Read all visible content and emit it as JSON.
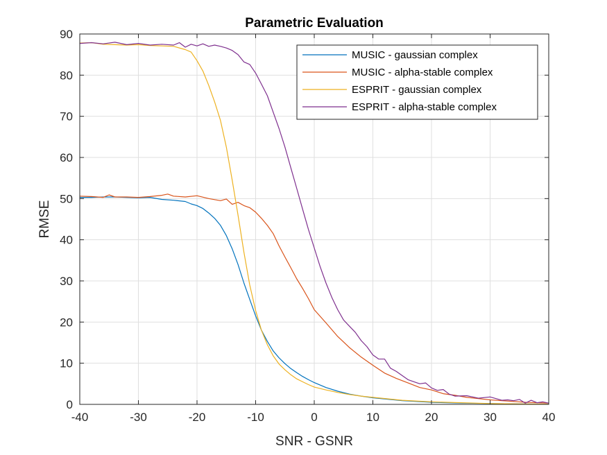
{
  "chart_data": {
    "type": "line",
    "title": "Parametric Evaluation",
    "xlabel": "SNR - GSNR",
    "ylabel": "RMSE",
    "xlim": [
      -40,
      40
    ],
    "ylim": [
      0,
      90
    ],
    "xticks": [
      -40,
      -30,
      -20,
      -10,
      0,
      10,
      20,
      30,
      40
    ],
    "yticks": [
      0,
      10,
      20,
      30,
      40,
      50,
      60,
      70,
      80,
      90
    ],
    "grid": true,
    "legend_position": "top-right",
    "series": [
      {
        "name": "MUSIC - gaussian complex",
        "color": "#0072BD",
        "x": [
          -40,
          -38,
          -36,
          -34,
          -32,
          -30,
          -28,
          -26,
          -24,
          -22,
          -21,
          -20,
          -19,
          -18,
          -17,
          -16,
          -15,
          -14,
          -13,
          -12,
          -11,
          -10,
          -9,
          -8,
          -7,
          -6,
          -5,
          -4,
          -3,
          -2,
          -1,
          0,
          2,
          4,
          6,
          8,
          10,
          15,
          20,
          25,
          30,
          35,
          40
        ],
        "y": [
          50.3,
          50.3,
          50.4,
          50.4,
          50.3,
          50.2,
          50.3,
          49.8,
          49.6,
          49.3,
          48.7,
          48.3,
          47.6,
          46.5,
          45.2,
          43.5,
          41.0,
          37.8,
          34.0,
          29.5,
          25.5,
          21.5,
          18.0,
          15.3,
          13.0,
          11.3,
          9.9,
          8.7,
          7.7,
          6.8,
          6.0,
          5.3,
          4.1,
          3.2,
          2.5,
          2.0,
          1.6,
          0.9,
          0.5,
          0.3,
          0.2,
          0.1,
          0.05
        ]
      },
      {
        "name": "MUSIC - alpha-stable complex",
        "color": "#D95319",
        "x": [
          -40,
          -38,
          -36,
          -35,
          -34,
          -32,
          -30,
          -28,
          -26,
          -25,
          -24,
          -22,
          -20,
          -18,
          -16,
          -15,
          -14,
          -13,
          -12,
          -11,
          -10,
          -9,
          -8,
          -7,
          -6,
          -5,
          -4,
          -3,
          -2,
          -1,
          0,
          2,
          4,
          6,
          8,
          10,
          12,
          14,
          16,
          18,
          20,
          22,
          24,
          26,
          28,
          30,
          32,
          34,
          36,
          38,
          40
        ],
        "y": [
          50.6,
          50.5,
          50.3,
          50.9,
          50.4,
          50.4,
          50.3,
          50.5,
          50.8,
          51.1,
          50.6,
          50.4,
          50.7,
          50.0,
          49.5,
          49.9,
          48.6,
          49.1,
          48.3,
          47.8,
          46.7,
          45.2,
          43.5,
          41.5,
          38.5,
          35.8,
          33.2,
          30.5,
          28.2,
          25.7,
          23.0,
          19.8,
          16.5,
          13.8,
          11.5,
          9.5,
          7.6,
          6.3,
          5.2,
          4.1,
          3.5,
          2.6,
          2.2,
          1.7,
          1.4,
          1.1,
          0.9,
          0.7,
          0.5,
          0.4,
          0.3
        ]
      },
      {
        "name": "ESPRIT - gaussian complex",
        "color": "#EDB120",
        "x": [
          -40,
          -38,
          -36,
          -34,
          -32,
          -30,
          -28,
          -26,
          -24,
          -22,
          -21,
          -20,
          -19,
          -18,
          -17,
          -16,
          -15,
          -14,
          -13,
          -12,
          -11,
          -10,
          -9,
          -8,
          -7,
          -6,
          -5,
          -4,
          -3,
          -2,
          -1,
          0,
          2,
          4,
          6,
          8,
          10,
          15,
          20,
          25,
          30,
          35,
          40
        ],
        "y": [
          87.8,
          87.9,
          87.5,
          87.4,
          87.3,
          87.4,
          87.2,
          87.1,
          87.0,
          86.2,
          85.6,
          83.5,
          81.0,
          77.5,
          73.5,
          69.0,
          62.5,
          54.5,
          46.0,
          37.0,
          29.0,
          22.8,
          18.0,
          14.5,
          11.8,
          9.8,
          8.4,
          7.2,
          6.2,
          5.5,
          4.8,
          4.2,
          3.5,
          2.9,
          2.4,
          2.0,
          1.7,
          1.0,
          0.6,
          0.4,
          0.2,
          0.1,
          0.05
        ]
      },
      {
        "name": "ESPRIT - alpha-stable complex",
        "color": "#7E2F8E",
        "x": [
          -40,
          -38,
          -36,
          -34,
          -32,
          -30,
          -28,
          -26,
          -24,
          -23,
          -22,
          -21,
          -20,
          -19,
          -18,
          -17,
          -16,
          -15,
          -14,
          -13,
          -12,
          -11,
          -10,
          -9,
          -8,
          -7,
          -6,
          -5,
          -4,
          -3,
          -2,
          -1,
          0,
          1,
          2,
          3,
          4,
          5,
          6,
          7,
          8,
          9,
          10,
          11,
          12,
          13,
          14,
          15,
          16,
          17,
          18,
          19,
          20,
          21,
          22,
          23,
          24,
          26,
          28,
          30,
          32,
          33,
          34,
          35,
          36,
          37,
          38,
          39,
          40
        ],
        "y": [
          87.7,
          87.9,
          87.6,
          88.0,
          87.4,
          87.7,
          87.3,
          87.5,
          87.3,
          87.9,
          86.8,
          87.5,
          87.1,
          87.6,
          87.0,
          87.3,
          87.0,
          86.6,
          86.0,
          85.0,
          83.2,
          82.6,
          80.5,
          77.8,
          75.0,
          71.0,
          67.0,
          62.5,
          57.5,
          52.5,
          47.5,
          42.5,
          38.0,
          33.5,
          29.5,
          26.0,
          23.0,
          20.5,
          19.0,
          17.5,
          15.5,
          14.0,
          12.0,
          11.0,
          11.0,
          8.8,
          8.0,
          7.0,
          6.0,
          5.5,
          5.0,
          5.2,
          4.0,
          3.4,
          3.6,
          2.5,
          2.0,
          2.1,
          1.5,
          1.8,
          1.0,
          1.1,
          0.9,
          1.2,
          0.3,
          1.0,
          0.4,
          0.6,
          0.3
        ]
      }
    ]
  }
}
